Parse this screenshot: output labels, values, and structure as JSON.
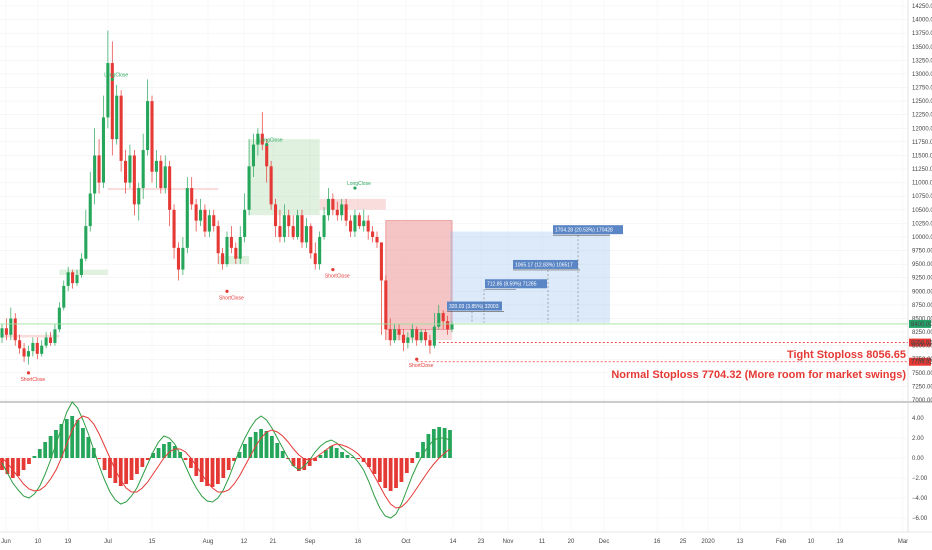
{
  "chart_data": {
    "type": "candlestick",
    "y_range": [
      7000,
      14250
    ],
    "price_ticks": [
      "14250.00",
      "14000.00",
      "13750.00",
      "13500.00",
      "13250.00",
      "13000.00",
      "12750.00",
      "12500.00",
      "12250.00",
      "12000.00",
      "11750.00",
      "11500.00",
      "11250.00",
      "11000.00",
      "10750.00",
      "10500.00",
      "10250.00",
      "10000.00",
      "9750.00",
      "9500.00",
      "9250.00",
      "9000.00",
      "8750.00",
      "8500.00",
      "8250.00",
      "8000.00",
      "7750.00",
      "7500.00",
      "7250.00",
      "7000.00"
    ],
    "current_price_label": "8400.00",
    "x_ticks": [
      "Jun",
      "10",
      "19",
      "Jul",
      "15",
      "Aug",
      "12",
      "21",
      "Sep",
      "16",
      "Oct",
      "14",
      "23",
      "Nov",
      "11",
      "20",
      "Dec",
      "16",
      "25",
      "2020",
      "13",
      "Feb",
      "10",
      "19",
      "Mar"
    ],
    "candles": [
      [
        8150,
        8320,
        8050,
        8400
      ],
      [
        8320,
        8200,
        8100,
        8500
      ],
      [
        8200,
        8500,
        8100,
        8700
      ],
      [
        8500,
        8100,
        8000,
        8600
      ],
      [
        8100,
        7950,
        7850,
        8200
      ],
      [
        7950,
        7800,
        7700,
        8050
      ],
      [
        7800,
        7900,
        7650,
        8000
      ],
      [
        7900,
        8050,
        7800,
        8150
      ],
      [
        8050,
        7850,
        7750,
        8150
      ],
      [
        7850,
        8000,
        7800,
        8100
      ],
      [
        8000,
        8150,
        7950,
        8250
      ],
      [
        8150,
        8050,
        8000,
        8250
      ],
      [
        8050,
        8300,
        8000,
        8400
      ],
      [
        8300,
        8700,
        8250,
        8800
      ],
      [
        8700,
        9100,
        8650,
        9200
      ],
      [
        9100,
        9350,
        9000,
        9450
      ],
      [
        9350,
        9150,
        9050,
        9400
      ],
      [
        9150,
        9300,
        9100,
        9400
      ],
      [
        9300,
        9600,
        9250,
        9700
      ],
      [
        9600,
        10200,
        9550,
        10500
      ],
      [
        10200,
        10800,
        10100,
        11200
      ],
      [
        10800,
        11500,
        10600,
        12000
      ],
      [
        11500,
        11000,
        10800,
        11800
      ],
      [
        11000,
        12200,
        10900,
        12600
      ],
      [
        12200,
        13200,
        12000,
        13800
      ],
      [
        13200,
        11800,
        11500,
        13600
      ],
      [
        11800,
        12600,
        11700,
        12800
      ],
      [
        12600,
        11400,
        11200,
        12700
      ],
      [
        11400,
        11000,
        10800,
        11600
      ],
      [
        11000,
        11500,
        10900,
        11700
      ],
      [
        11500,
        10600,
        10400,
        11600
      ],
      [
        10600,
        10900,
        10300,
        11000
      ],
      [
        10900,
        11600,
        10700,
        11900
      ],
      [
        11600,
        12500,
        11500,
        12900
      ],
      [
        12500,
        11200,
        11000,
        12600
      ],
      [
        11200,
        11400,
        10900,
        11600
      ],
      [
        11400,
        10900,
        10800,
        11500
      ],
      [
        10900,
        11300,
        10800,
        11500
      ],
      [
        11300,
        10500,
        10200,
        11400
      ],
      [
        10500,
        9800,
        9600,
        10600
      ],
      [
        9800,
        9400,
        9200,
        9900
      ],
      [
        9400,
        9800,
        9300,
        10000
      ],
      [
        9800,
        10900,
        9700,
        11100
      ],
      [
        10900,
        10600,
        10500,
        11100
      ],
      [
        10600,
        10300,
        10100,
        10700
      ],
      [
        10300,
        10500,
        10200,
        10700
      ],
      [
        10500,
        10100,
        10000,
        10600
      ],
      [
        10100,
        10400,
        10000,
        10500
      ],
      [
        10400,
        10200,
        10100,
        10500
      ],
      [
        10200,
        9700,
        9500,
        10300
      ],
      [
        9700,
        9500,
        9400,
        9800
      ],
      [
        9500,
        10000,
        9450,
        10100
      ],
      [
        10000,
        9800,
        9700,
        10200
      ],
      [
        9800,
        9600,
        9500,
        9900
      ],
      [
        9600,
        10000,
        9500,
        10200
      ],
      [
        10000,
        10500,
        9900,
        10800
      ],
      [
        10500,
        11300,
        10400,
        11800
      ],
      [
        11300,
        11700,
        11100,
        11900
      ],
      [
        11700,
        11900,
        11500,
        12000
      ],
      [
        11900,
        11700,
        11600,
        12300
      ],
      [
        11700,
        11300,
        11000,
        11800
      ],
      [
        11300,
        10600,
        10500,
        11400
      ],
      [
        10600,
        10200,
        10000,
        10700
      ],
      [
        10200,
        10000,
        9900,
        10500
      ],
      [
        10000,
        10400,
        9900,
        10600
      ],
      [
        10400,
        10200,
        10000,
        10500
      ],
      [
        10200,
        10000,
        9950,
        10400
      ],
      [
        10000,
        10400,
        9950,
        10500
      ],
      [
        10400,
        9900,
        9800,
        10500
      ],
      [
        9900,
        10200,
        9800,
        10350
      ],
      [
        10200,
        9700,
        9600,
        10250
      ],
      [
        9700,
        9500,
        9400,
        9900
      ],
      [
        9500,
        10000,
        9400,
        10100
      ],
      [
        10000,
        10400,
        9950,
        10550
      ],
      [
        10400,
        10700,
        10300,
        10900
      ],
      [
        10700,
        10500,
        10400,
        10800
      ],
      [
        10500,
        10400,
        10300,
        10650
      ],
      [
        10400,
        10600,
        10300,
        10700
      ],
      [
        10600,
        10300,
        10200,
        10700
      ],
      [
        10300,
        10100,
        10000,
        10400
      ],
      [
        10100,
        10400,
        10000,
        10500
      ],
      [
        10400,
        10200,
        10150,
        10450
      ],
      [
        10200,
        10300,
        10100,
        10500
      ],
      [
        10300,
        10100,
        9950,
        10400
      ],
      [
        10100,
        10000,
        9900,
        10200
      ],
      [
        10000,
        9900,
        9800,
        10100
      ],
      [
        9900,
        9200,
        8200,
        9900
      ],
      [
        9200,
        8300,
        8100,
        9300
      ],
      [
        8300,
        8100,
        8000,
        8500
      ],
      [
        8100,
        8300,
        8050,
        8400
      ],
      [
        8300,
        8200,
        8100,
        8400
      ],
      [
        8200,
        8050,
        7900,
        8300
      ],
      [
        8050,
        8150,
        7950,
        8250
      ],
      [
        8150,
        8300,
        8050,
        8400
      ],
      [
        8300,
        8100,
        8000,
        8350
      ],
      [
        8100,
        8250,
        8050,
        8300
      ],
      [
        8250,
        8100,
        8000,
        8300
      ],
      [
        8100,
        8000,
        7850,
        8200
      ],
      [
        8000,
        8350,
        7950,
        8600
      ],
      [
        8350,
        8600,
        8300,
        8750
      ],
      [
        8600,
        8450,
        8300,
        8650
      ],
      [
        8450,
        8300,
        8200,
        8550
      ],
      [
        8300,
        8400,
        8250,
        8450
      ]
    ],
    "indicator_boxes": [
      {
        "label": "320.03 (3.85%) 32003"
      },
      {
        "label": "712.85 (8.59%) 71285"
      },
      {
        "label": "1065.17 (12.83%) 106517"
      },
      {
        "label": "1704.28 (20.53%) 170428"
      }
    ],
    "tight_stoploss_text": "Tight Stoploss 8056.65",
    "tight_stoploss_value": 8056.65,
    "tight_stoploss_label": "8056.65",
    "normal_stoploss_text": "Normal Stoploss 7704.32 (More room for market swings)",
    "normal_stoploss_value": 7704.32,
    "normal_stoploss_label": "7704.32",
    "strategy_marks": [
      {
        "text": "ShortClose"
      },
      {
        "text": "LongClose"
      },
      {
        "text": "ShortClose"
      },
      {
        "text": "LongClose"
      },
      {
        "text": "ShortClose"
      },
      {
        "text": "LongClose"
      },
      {
        "text": "ShortClose"
      }
    ],
    "macd_ticks": [
      "4.00",
      "2.00",
      "0.00",
      "−2.00",
      "−4.00",
      "−6.00"
    ],
    "macd_range": [
      -7,
      5
    ],
    "macd_histogram": [
      -1.2,
      -1.6,
      -2.0,
      -1.8,
      -1.2,
      -0.6,
      0.2,
      0.9,
      1.6,
      2.2,
      2.8,
      3.4,
      3.9,
      4.2,
      3.8,
      3.0,
      2.1,
      1.0,
      -0.1,
      -1.2,
      -2.0,
      -2.5,
      -2.8,
      -2.6,
      -2.2,
      -1.6,
      -0.9,
      -0.2,
      0.5,
      1.0,
      1.4,
      1.6,
      1.2,
      0.6,
      -0.2,
      -1.0,
      -1.8,
      -2.4,
      -2.8,
      -2.9,
      -2.6,
      -2.0,
      -1.2,
      -0.3,
      0.6,
      1.4,
      2.1,
      2.6,
      2.9,
      2.7,
      2.2,
      1.5,
      0.7,
      -0.1,
      -0.8,
      -1.3,
      -1.2,
      -0.8,
      -0.3,
      0.3,
      0.8,
      1.2,
      1.0,
      0.6,
      0.3,
      0.1,
      -0.1,
      -0.4,
      -0.9,
      -1.6,
      -2.4,
      -3.0,
      -3.3,
      -3.0,
      -2.4,
      -1.5,
      -0.5,
      0.6,
      1.6,
      2.4,
      2.9,
      3.1,
      3.0,
      2.8
    ],
    "macd_line": [
      -0.5,
      -1.5,
      -2.5,
      -3.2,
      -3.8,
      -4.0,
      -3.6,
      -2.8,
      -1.6,
      -0.2,
      1.4,
      3.0,
      4.6,
      5.6,
      5.0,
      3.8,
      2.4,
      0.8,
      -0.8,
      -2.2,
      -3.4,
      -4.2,
      -4.6,
      -4.4,
      -3.8,
      -3.0,
      -1.8,
      -0.6,
      0.6,
      1.6,
      2.2,
      2.0,
      1.4,
      0.4,
      -0.8,
      -2.0,
      -3.0,
      -3.8,
      -4.3,
      -4.4,
      -4.0,
      -3.2,
      -2.0,
      -0.6,
      0.8,
      2.0,
      3.0,
      3.8,
      4.2,
      3.8,
      3.0,
      2.0,
      1.0,
      0.0,
      -0.8,
      -1.2,
      -0.8,
      -0.2,
      0.6,
      1.2,
      1.6,
      1.8,
      1.5,
      1.0,
      0.6,
      0.2,
      -0.4,
      -1.2,
      -2.4,
      -3.8,
      -5.0,
      -5.8,
      -6.0,
      -5.6,
      -4.6,
      -3.2,
      -1.8,
      -0.6,
      0.4,
      1.2,
      1.8,
      2.0,
      2.0,
      1.8
    ],
    "signal_line": [
      0.0,
      -0.5,
      -1.2,
      -1.9,
      -2.6,
      -3.1,
      -3.3,
      -3.2,
      -2.8,
      -2.1,
      -1.2,
      0.0,
      1.4,
      2.8,
      3.8,
      4.2,
      4.0,
      3.4,
      2.4,
      1.2,
      0.0,
      -1.2,
      -2.2,
      -3.0,
      -3.4,
      -3.4,
      -3.0,
      -2.4,
      -1.6,
      -0.8,
      0.0,
      0.6,
      0.9,
      0.9,
      0.6,
      0.0,
      -0.8,
      -1.6,
      -2.4,
      -3.0,
      -3.4,
      -3.4,
      -3.2,
      -2.6,
      -1.8,
      -0.8,
      0.2,
      1.2,
      2.0,
      2.6,
      2.8,
      2.6,
      2.2,
      1.6,
      0.9,
      0.3,
      -0.1,
      -0.2,
      0.0,
      0.4,
      0.8,
      1.2,
      1.4,
      1.3,
      1.1,
      0.8,
      0.4,
      -0.2,
      -0.9,
      -1.8,
      -2.8,
      -3.8,
      -4.6,
      -5.0,
      -4.9,
      -4.4,
      -3.7,
      -2.9,
      -2.1,
      -1.3,
      -0.6,
      0.0,
      0.5,
      0.9
    ]
  }
}
